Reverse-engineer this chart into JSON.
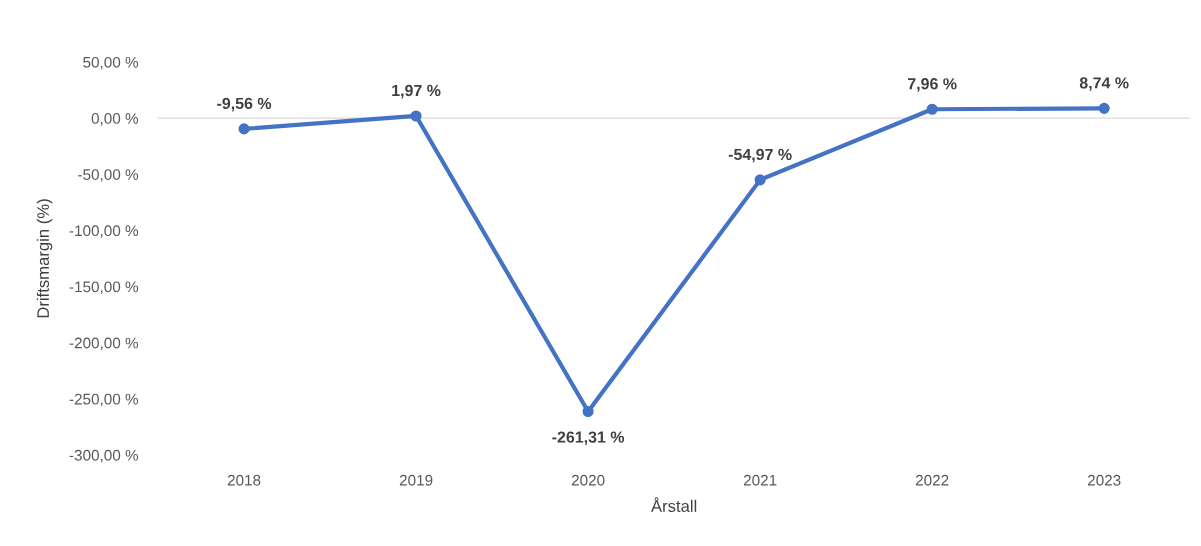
{
  "chart_data": {
    "type": "line",
    "xlabel": "Årstall",
    "ylabel": "Driftsmargin (%)",
    "categories": [
      "2018",
      "2019",
      "2020",
      "2021",
      "2022",
      "2023"
    ],
    "series": [
      {
        "color": "#4472c4",
        "values": [
          -9.56,
          1.97,
          -261.31,
          -54.97,
          7.96,
          8.74
        ],
        "value_labels": [
          "-9,56 %",
          "1,97 %",
          "-261,31 %",
          "-54,97 %",
          "7,96 %",
          "8,74 %"
        ]
      }
    ],
    "ylim": [
      -300,
      50
    ],
    "yticks": [
      {
        "value": 50,
        "label": "50,00 %"
      },
      {
        "value": 0,
        "label": "0,00 %"
      },
      {
        "value": -50,
        "label": "-50,00 %"
      },
      {
        "value": -100,
        "label": "-100,00 %"
      },
      {
        "value": -150,
        "label": "-150,00 %"
      },
      {
        "value": -200,
        "label": "-200,00 %"
      },
      {
        "value": -250,
        "label": "-250,00 %"
      },
      {
        "value": -300,
        "label": "-300,00 %"
      }
    ],
    "ref_lines": [
      {
        "axis": "y",
        "value": 0,
        "color": "#d9d9d9"
      }
    ],
    "grid": false,
    "legend": false,
    "marker": "circle",
    "line_style": "solid"
  }
}
